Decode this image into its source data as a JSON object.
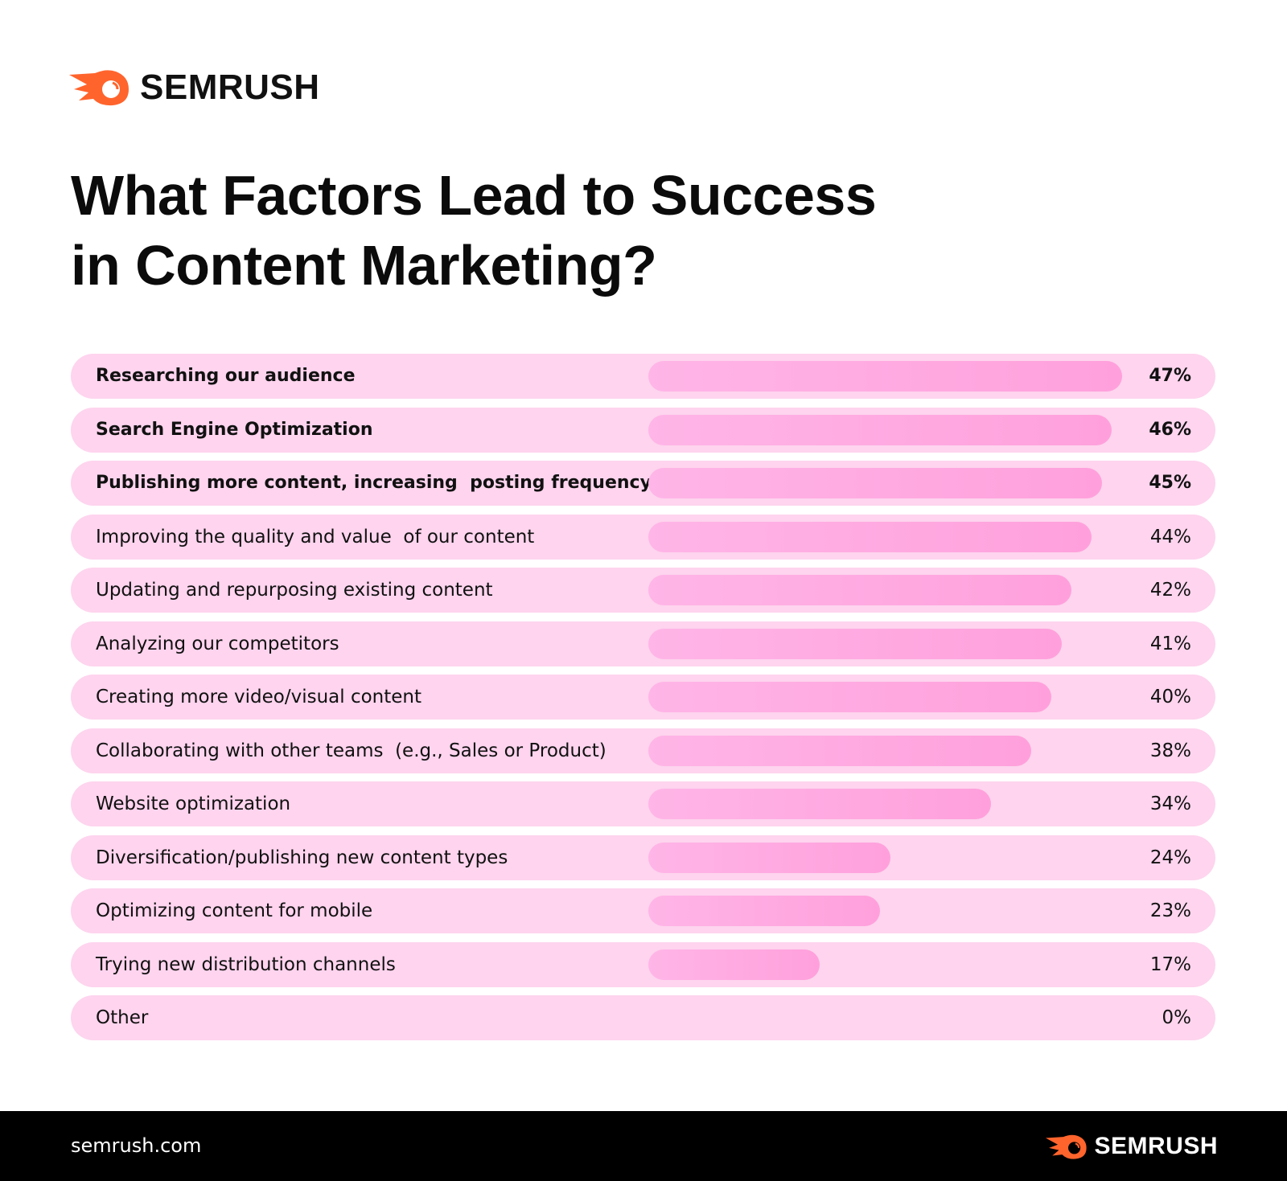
{
  "brand": {
    "name": "SEMRUSH",
    "color": "#ff642d"
  },
  "title_line1": "What Factors Lead to Success",
  "title_line2": "in Content Marketing?",
  "chart_data": {
    "type": "bar",
    "orientation": "horizontal",
    "title": "What Factors Lead to Success in Content Marketing?",
    "categories": [
      "Researching our audience",
      "Search Engine Optimization",
      "Publishing more content, increasing  posting frequency",
      "Improving the quality and value  of our content",
      "Updating and repurposing existing content",
      "Analyzing our competitors",
      "Creating more video/visual content",
      "Collaborating with other teams  (e.g., Sales or Product)",
      "Website optimization",
      "Diversification/publishing new content types",
      "Optimizing content for mobile",
      "Trying new distribution channels",
      "Other"
    ],
    "values": [
      47,
      46,
      45,
      44,
      42,
      41,
      40,
      38,
      34,
      24,
      23,
      17,
      0
    ],
    "value_labels": [
      "47%",
      "46%",
      "45%",
      "44%",
      "42%",
      "41%",
      "40%",
      "38%",
      "34%",
      "24%",
      "23%",
      "17%",
      "0%"
    ],
    "unit": "%",
    "bold_rows": 3,
    "colors": {
      "row_bg": "#fed4ee",
      "bar_start": "#ffb5e7",
      "bar_end": "#ffa0dc"
    }
  },
  "footer": {
    "site": "semrush.com",
    "brand": "SEMRUSH"
  }
}
